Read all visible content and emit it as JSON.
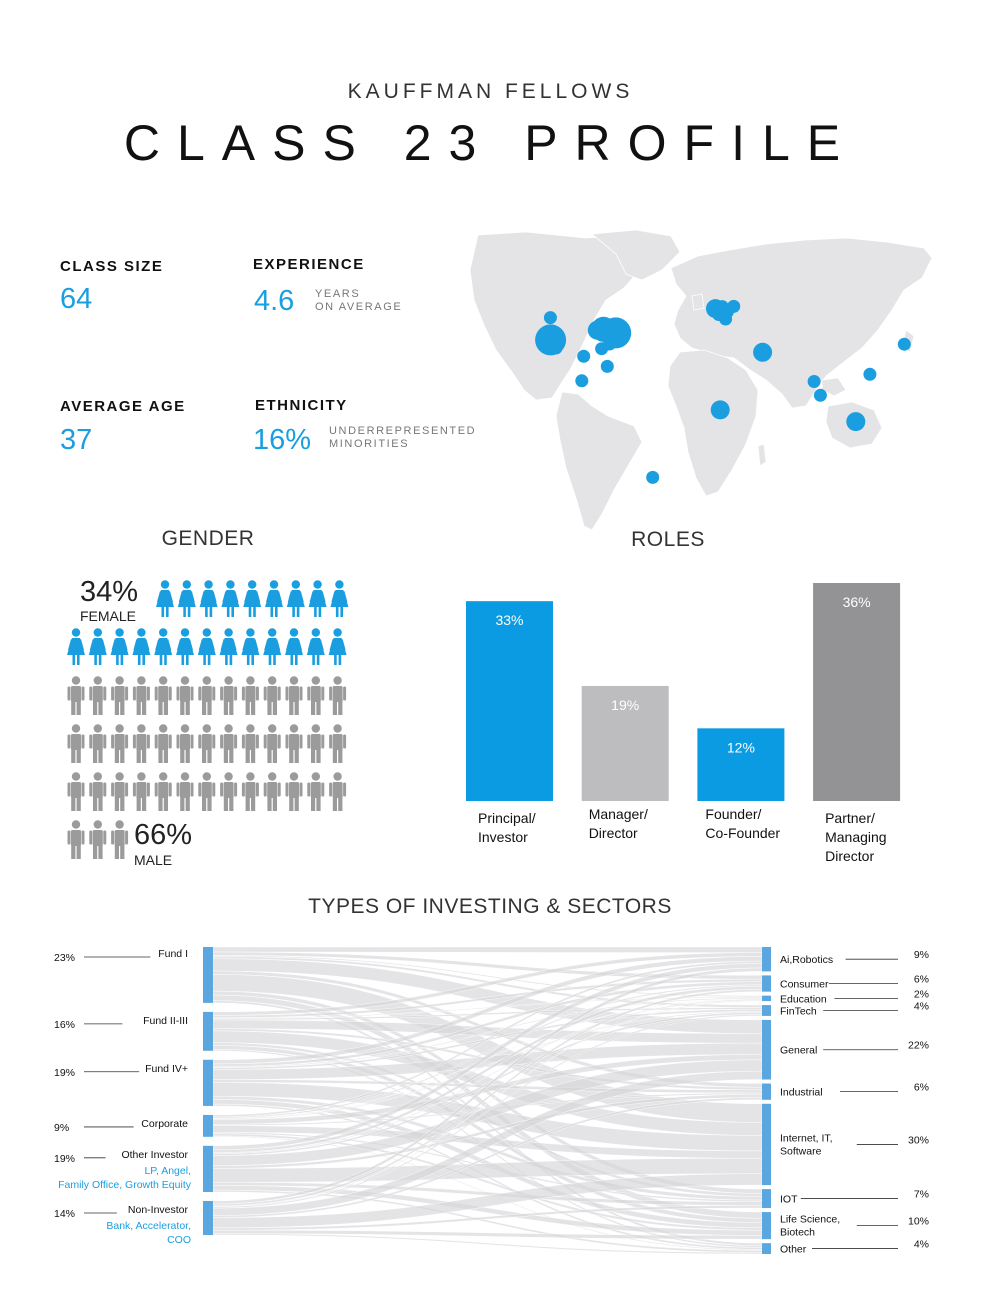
{
  "header": {
    "kicker": "KAUFFMAN FELLOWS",
    "title": "CLASS 23 PROFILE"
  },
  "stats": {
    "class_size": {
      "label": "CLASS SIZE",
      "value": "64"
    },
    "experience": {
      "label": "EXPERIENCE",
      "value": "4.6",
      "sub1": "YEARS",
      "sub2": "ON AVERAGE"
    },
    "average_age": {
      "label": "AVERAGE AGE",
      "value": "37"
    },
    "ethnicity": {
      "label": "ETHNICITY",
      "value": "16%",
      "sub1": "UNDERREPRESENTED",
      "sub2": "MINORITIES"
    }
  },
  "colors": {
    "accent": "#1a9ee0",
    "grey_person": "#9b9b9b",
    "bar_grey_light": "#bdbcbe",
    "bar_grey_dark": "#939295",
    "map_land": "#e4e4e6",
    "sankey_flow": "#d6d6d8",
    "sankey_node": "#5aa7e0"
  },
  "chart_data": [
    {
      "type": "pictogram",
      "title": "GENDER",
      "categories": [
        "FEMALE",
        "MALE"
      ],
      "values": [
        34,
        66
      ],
      "labels": [
        "34%",
        "66%"
      ],
      "icon_counts": [
        22,
        42
      ]
    },
    {
      "type": "bar",
      "title": "ROLES",
      "categories": [
        [
          "Principal/",
          "Investor"
        ],
        [
          "Manager/",
          "Director"
        ],
        [
          "Founder/",
          "Co-Founder"
        ],
        [
          "Partner/",
          "Managing",
          "Director"
        ]
      ],
      "values": [
        33,
        19,
        12,
        36
      ],
      "value_labels": [
        "33%",
        "19%",
        "12%",
        "36%"
      ],
      "colors": [
        "#0a9be3",
        "#bdbcbe",
        "#0a9be3",
        "#939295"
      ]
    },
    {
      "type": "sankey",
      "title": "TYPES OF INVESTING & SECTORS",
      "sources": [
        {
          "name": "Fund I",
          "value": 23,
          "label": "23%"
        },
        {
          "name": "Fund II-III",
          "value": 16,
          "label": "16%"
        },
        {
          "name": "Fund IV+",
          "value": 19,
          "label": "19%"
        },
        {
          "name": "Corporate",
          "value": 9,
          "label": "9%"
        },
        {
          "name": "Other Investor",
          "value": 19,
          "label": "19%",
          "note": "LP, Angel, Family Office, Growth Equity"
        },
        {
          "name": "Non-Investor",
          "value": 14,
          "label": "14%",
          "note": "Bank, Accelerator, COO"
        }
      ],
      "targets": [
        {
          "name": "Ai,Robotics",
          "value": 9,
          "label": "9%"
        },
        {
          "name": "Consumer",
          "value": 6,
          "label": "6%"
        },
        {
          "name": "Education",
          "value": 2,
          "label": "2%"
        },
        {
          "name": "FinTech",
          "value": 4,
          "label": "4%"
        },
        {
          "name": "General",
          "value": 22,
          "label": "22%"
        },
        {
          "name": "Industrial",
          "value": 6,
          "label": "6%"
        },
        {
          "name": "Internet, IT, Software",
          "value": 30,
          "label": "30%"
        },
        {
          "name": "IOT",
          "value": 7,
          "label": "7%"
        },
        {
          "name": "Life Science, Biotech",
          "value": 10,
          "label": "10%"
        },
        {
          "name": "Other",
          "value": 4,
          "label": "4%"
        }
      ]
    },
    {
      "type": "bubble-map",
      "points": [
        {
          "lat": 47.5,
          "lon": -122.3,
          "size": 1
        },
        {
          "lat": 37.6,
          "lon": -122.2,
          "size": 4
        },
        {
          "lat": 34.0,
          "lon": -118.2,
          "size": 1
        },
        {
          "lat": 41.9,
          "lon": -87.6,
          "size": 2
        },
        {
          "lat": 42.3,
          "lon": -83.0,
          "size": 3
        },
        {
          "lat": 39.2,
          "lon": -77.0,
          "size": 2
        },
        {
          "lat": 40.7,
          "lon": -74.0,
          "size": 4
        },
        {
          "lat": 42.4,
          "lon": -71.0,
          "size": 2
        },
        {
          "lat": 35.8,
          "lon": -78.6,
          "size": 1
        },
        {
          "lat": 33.7,
          "lon": -84.4,
          "size": 1
        },
        {
          "lat": 30.3,
          "lon": -97.7,
          "size": 1
        },
        {
          "lat": 25.8,
          "lon": -80.2,
          "size": 1
        },
        {
          "lat": 19.4,
          "lon": -99.1,
          "size": 1
        },
        {
          "lat": 51.5,
          "lon": -0.1,
          "size": 2
        },
        {
          "lat": 48.9,
          "lon": 2.3,
          "size": 1
        },
        {
          "lat": 52.5,
          "lon": 13.4,
          "size": 1
        },
        {
          "lat": 50.1,
          "lon": 8.7,
          "size": 1
        },
        {
          "lat": 46.9,
          "lon": 7.4,
          "size": 1
        },
        {
          "lat": 52.4,
          "lon": 4.9,
          "size": 1
        },
        {
          "lat": 32.1,
          "lon": 34.8,
          "size": 2
        },
        {
          "lat": 6.5,
          "lon": 3.4,
          "size": 2
        },
        {
          "lat": 19.1,
          "lon": 72.9,
          "size": 1
        },
        {
          "lat": 13.0,
          "lon": 77.6,
          "size": 1
        },
        {
          "lat": 1.3,
          "lon": 103.8,
          "size": 2
        },
        {
          "lat": 22.3,
          "lon": 114.2,
          "size": 1
        },
        {
          "lat": 35.7,
          "lon": 139.7,
          "size": 1
        },
        {
          "lat": -23.5,
          "lon": -46.6,
          "size": 1
        }
      ]
    }
  ]
}
